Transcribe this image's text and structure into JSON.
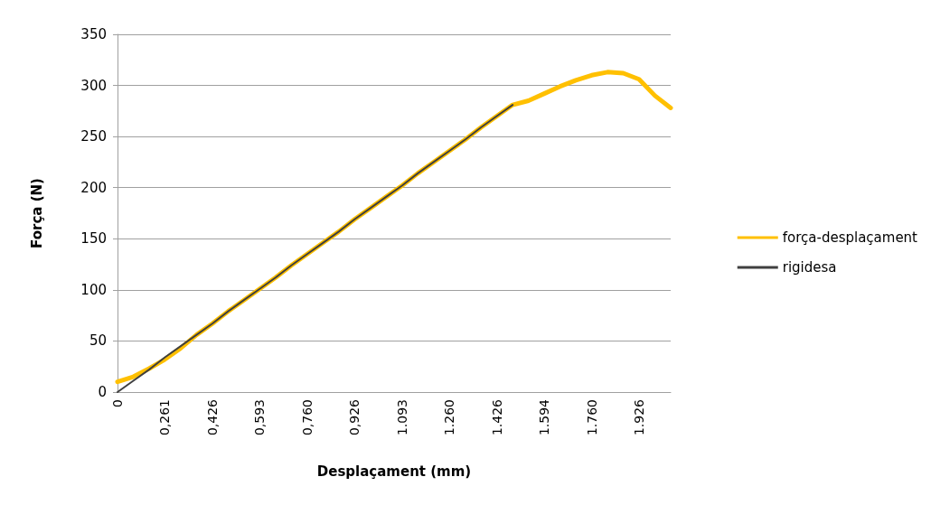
{
  "chart_data": {
    "type": "line",
    "xlabel": "Desplaçament (mm)",
    "ylabel": "Força (N)",
    "categories": [
      "0",
      null,
      null,
      "0,261",
      null,
      null,
      "0,426",
      null,
      null,
      "0,593",
      null,
      null,
      "0,760",
      null,
      null,
      "0,926",
      null,
      null,
      "1.093",
      null,
      null,
      "1.260",
      null,
      null,
      "1.426",
      null,
      null,
      "1.594",
      null,
      null,
      "1.760",
      null,
      null,
      "1.926",
      null,
      null
    ],
    "series": [
      {
        "name": "força-desplaçament",
        "color": "#ffc000",
        "values": [
          10,
          15,
          23,
          32,
          43,
          56,
          67,
          79,
          90,
          101,
          112,
          124,
          135,
          146,
          157,
          169,
          180,
          191,
          202,
          214,
          225,
          236,
          247,
          259,
          270,
          281,
          285,
          292,
          299,
          305,
          310,
          313,
          312,
          306,
          290,
          278
        ]
      },
      {
        "name": "rigidesa",
        "color": "#404040",
        "values": [
          0,
          11,
          22,
          34,
          45,
          56,
          67,
          79,
          90,
          101,
          112,
          124,
          135,
          146,
          157,
          169,
          180,
          191,
          202,
          214,
          225,
          236,
          247,
          259,
          270,
          281,
          null,
          null,
          null,
          null,
          null,
          null,
          null,
          null,
          null,
          null
        ]
      }
    ],
    "ylim": [
      0,
      350
    ],
    "yticks": [
      0,
      50,
      100,
      150,
      200,
      250,
      300,
      350
    ],
    "grid": "y",
    "legend": "right",
    "marker": "none",
    "line_style": "solid"
  }
}
